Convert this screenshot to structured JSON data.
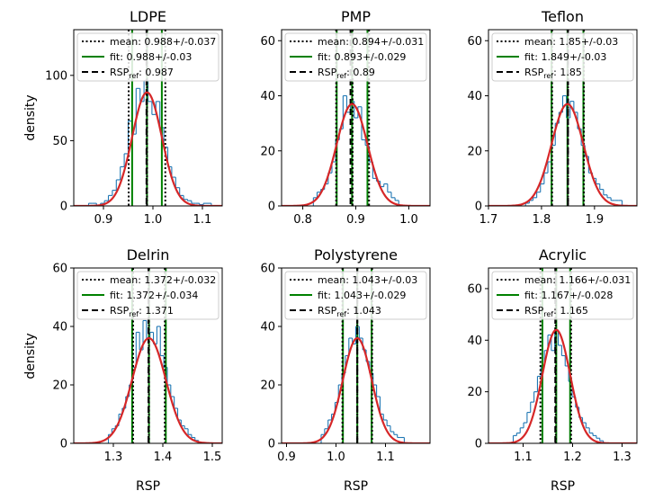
{
  "colors": {
    "histogram": "#1f77b4",
    "fit": "#d62728",
    "fit_lines": "#008000",
    "mean_lines": "#000000",
    "ref_line": "#000000"
  },
  "axis_labels": {
    "ylabel": "density",
    "xlabel": "RSP"
  },
  "legend_labels": {
    "mean": "mean: ",
    "fit": "fit: ",
    "ref_main": "RSP",
    "ref_sub": "ref",
    "ref_sep": ": "
  },
  "chart_data": [
    {
      "type": "bar",
      "title": "LDPE",
      "xlim": [
        0.84,
        1.14
      ],
      "ylim": [
        0,
        135
      ],
      "xticks": [
        0.9,
        1.0,
        1.1
      ],
      "xtick_labels": [
        "0.9",
        "1.0",
        "1.1"
      ],
      "yticks": [
        0,
        50,
        100
      ],
      "ytick_labels": [
        "0",
        "50",
        "100"
      ],
      "mean": 0.988,
      "mean_sd": 0.037,
      "mean_text": "0.988+/-0.037",
      "fit_mean": 0.988,
      "fit_sd": 0.03,
      "fit_text": "0.988+/-0.03",
      "fit_peak": 87,
      "ref": 0.987,
      "ref_text": "0.987",
      "bins": [
        0.87,
        0.878,
        0.886,
        0.894,
        0.902,
        0.91,
        0.918,
        0.926,
        0.934,
        0.942,
        0.95,
        0.958,
        0.966,
        0.974,
        0.982,
        0.99,
        0.998,
        1.006,
        1.014,
        1.022,
        1.03,
        1.038,
        1.046,
        1.054,
        1.062,
        1.07,
        1.078,
        1.086,
        1.094,
        1.102,
        1.11,
        1.118
      ],
      "counts": [
        2,
        2,
        0,
        2,
        4,
        8,
        12,
        20,
        30,
        40,
        65,
        55,
        90,
        80,
        96,
        80,
        70,
        80,
        60,
        45,
        30,
        22,
        14,
        8,
        5,
        4,
        2,
        2,
        1,
        2,
        2
      ]
    },
    {
      "type": "bar",
      "title": "PMP",
      "xlim": [
        0.76,
        1.04
      ],
      "ylim": [
        0,
        64
      ],
      "xticks": [
        0.8,
        0.9,
        1.0
      ],
      "xtick_labels": [
        "0.8",
        "0.9",
        "1.0"
      ],
      "yticks": [
        0,
        20,
        40,
        60
      ],
      "ytick_labels": [
        "0",
        "20",
        "40",
        "60"
      ],
      "mean": 0.894,
      "mean_sd": 0.031,
      "mean_text": "0.894+/-0.031",
      "fit_mean": 0.893,
      "fit_sd": 0.029,
      "fit_text": "0.893+/-0.029",
      "fit_peak": 37,
      "ref": 0.89,
      "ref_text": "0.89",
      "bins": [
        0.82,
        0.827,
        0.834,
        0.841,
        0.848,
        0.855,
        0.862,
        0.869,
        0.876,
        0.883,
        0.89,
        0.897,
        0.904,
        0.911,
        0.918,
        0.925,
        0.932,
        0.939,
        0.946,
        0.953,
        0.96,
        0.967,
        0.974,
        0.981
      ],
      "counts": [
        3,
        5,
        6,
        8,
        12,
        16,
        24,
        28,
        40,
        34,
        38,
        32,
        36,
        24,
        22,
        16,
        10,
        9,
        7,
        8,
        5,
        3,
        2
      ]
    },
    {
      "type": "bar",
      "title": "Teflon",
      "xlim": [
        1.7,
        1.98
      ],
      "ylim": [
        0,
        64
      ],
      "xticks": [
        1.7,
        1.8,
        1.9
      ],
      "xtick_labels": [
        "1.7",
        "1.8",
        "1.9"
      ],
      "yticks": [
        0,
        20,
        40,
        60
      ],
      "ytick_labels": [
        "0",
        "20",
        "40",
        "60"
      ],
      "mean": 1.85,
      "mean_sd": 0.03,
      "mean_text": "1.85+/-0.03",
      "fit_mean": 1.849,
      "fit_sd": 0.03,
      "fit_text": "1.849+/-0.03",
      "fit_peak": 37,
      "ref": 1.85,
      "ref_text": "1.85",
      "bins": [
        1.77,
        1.777,
        1.784,
        1.791,
        1.798,
        1.805,
        1.812,
        1.819,
        1.826,
        1.833,
        1.84,
        1.847,
        1.854,
        1.861,
        1.868,
        1.875,
        1.882,
        1.889,
        1.896,
        1.903,
        1.91,
        1.917,
        1.924,
        1.931,
        1.938,
        1.945,
        1.952
      ],
      "counts": [
        1,
        2,
        3,
        5,
        8,
        12,
        16,
        22,
        30,
        34,
        40,
        32,
        38,
        34,
        28,
        22,
        18,
        12,
        10,
        8,
        6,
        4,
        3,
        2,
        2,
        2
      ]
    },
    {
      "type": "bar",
      "title": "Delrin",
      "xlim": [
        1.22,
        1.52
      ],
      "ylim": [
        0,
        60
      ],
      "xticks": [
        1.3,
        1.4,
        1.5
      ],
      "xtick_labels": [
        "1.3",
        "1.4",
        "1.5"
      ],
      "yticks": [
        0,
        20,
        40,
        60
      ],
      "ytick_labels": [
        "0",
        "20",
        "40",
        "60"
      ],
      "mean": 1.372,
      "mean_sd": 0.032,
      "mean_text": "1.372+/-0.032",
      "fit_mean": 1.372,
      "fit_sd": 0.034,
      "fit_text": "1.372+/-0.034",
      "fit_peak": 36,
      "ref": 1.371,
      "ref_text": "1.371",
      "bins": [
        1.29,
        1.297,
        1.304,
        1.311,
        1.318,
        1.325,
        1.332,
        1.339,
        1.346,
        1.353,
        1.36,
        1.367,
        1.374,
        1.381,
        1.388,
        1.395,
        1.402,
        1.409,
        1.416,
        1.423,
        1.43,
        1.437,
        1.444,
        1.451,
        1.458,
        1.465,
        1.472
      ],
      "counts": [
        3,
        5,
        6,
        10,
        12,
        16,
        20,
        26,
        38,
        32,
        42,
        36,
        38,
        34,
        40,
        30,
        26,
        20,
        16,
        12,
        8,
        6,
        5,
        3,
        2,
        1
      ]
    },
    {
      "type": "bar",
      "title": "Polystyrene",
      "xlim": [
        0.89,
        1.19
      ],
      "ylim": [
        0,
        60
      ],
      "xticks": [
        0.9,
        1.0,
        1.1
      ],
      "xtick_labels": [
        "0.9",
        "1.0",
        "1.1"
      ],
      "yticks": [
        0,
        20,
        40,
        60
      ],
      "ytick_labels": [
        "0",
        "20",
        "40",
        "60"
      ],
      "mean": 1.043,
      "mean_sd": 0.03,
      "mean_text": "1.043+/-0.03",
      "fit_mean": 1.043,
      "fit_sd": 0.029,
      "fit_text": "1.043+/-0.029",
      "fit_peak": 36,
      "ref": 1.043,
      "ref_text": "1.043",
      "bins": [
        0.97,
        0.977,
        0.984,
        0.991,
        0.998,
        1.005,
        1.012,
        1.019,
        1.026,
        1.033,
        1.04,
        1.047,
        1.054,
        1.061,
        1.068,
        1.075,
        1.082,
        1.089,
        1.096,
        1.103,
        1.11,
        1.117,
        1.124,
        1.131,
        1.138
      ],
      "counts": [
        3,
        5,
        8,
        10,
        14,
        20,
        24,
        30,
        36,
        34,
        40,
        36,
        32,
        28,
        24,
        20,
        16,
        10,
        8,
        6,
        4,
        3,
        2,
        2
      ]
    },
    {
      "type": "bar",
      "title": "Acrylic",
      "xlim": [
        1.03,
        1.33
      ],
      "ylim": [
        0,
        68
      ],
      "xticks": [
        1.1,
        1.2,
        1.3
      ],
      "xtick_labels": [
        "1.1",
        "1.2",
        "1.3"
      ],
      "yticks": [
        0,
        20,
        40,
        60
      ],
      "ytick_labels": [
        "0",
        "20",
        "40",
        "60"
      ],
      "mean": 1.166,
      "mean_sd": 0.031,
      "mean_text": "1.166+/-0.031",
      "fit_mean": 1.167,
      "fit_sd": 0.028,
      "fit_text": "1.167+/-0.028",
      "fit_peak": 44,
      "ref": 1.165,
      "ref_text": "1.165",
      "bins": [
        1.08,
        1.087,
        1.094,
        1.101,
        1.108,
        1.115,
        1.122,
        1.129,
        1.136,
        1.143,
        1.15,
        1.157,
        1.164,
        1.171,
        1.178,
        1.185,
        1.192,
        1.199,
        1.206,
        1.213,
        1.22,
        1.227,
        1.234,
        1.241,
        1.248,
        1.255,
        1.262
      ],
      "counts": [
        3,
        4,
        6,
        8,
        12,
        16,
        20,
        26,
        30,
        36,
        42,
        36,
        44,
        38,
        34,
        30,
        24,
        18,
        14,
        10,
        8,
        6,
        4,
        3,
        2,
        1
      ]
    }
  ]
}
